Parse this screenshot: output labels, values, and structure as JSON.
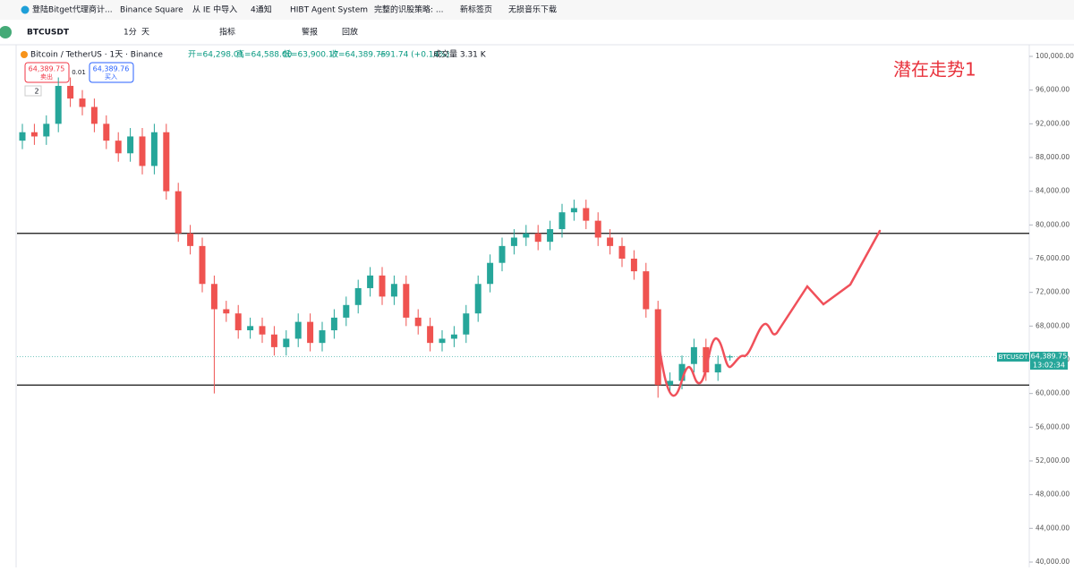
{
  "ui": {
    "bookmarks": [
      "登陆Bitget代理商计...",
      "Binance Square",
      "从 IE 中导入",
      "4通知",
      "HIBT Agent System",
      "完整的识股策略: ...",
      "新标签页",
      "无损音乐下载"
    ],
    "toolbar": {
      "symbol": "BTCUSDT",
      "interval1": "1分",
      "interval2": "天",
      "indicators": "指标",
      "alert": "警报",
      "replay": "回放"
    },
    "legend": {
      "title": "Bitcoin / TetherUS · 1天 · Binance",
      "open": "开=64,298.01",
      "high": "高=64,588.00",
      "low": "低=63,900.17",
      "close": "收=64,389.75",
      "change": "+91.74 (+0.14%)",
      "volume": "成交量 3.31 K"
    },
    "trade": {
      "sell_price": "64,389.75",
      "sell": "卖出",
      "spread": "0.01",
      "buy_price": "64,389.76",
      "buy": "买入",
      "layers": "2"
    },
    "annotation": "潜在走势1",
    "price_tag": {
      "symbol": "BTCUSDT",
      "price": "64,389.75",
      "countdown": "13:02:34"
    }
  },
  "chart_data": {
    "type": "candlestick",
    "up_color": "#26a69a",
    "down_color": "#ef5350",
    "ylim": [
      40000,
      100000
    ],
    "yticks": [
      {
        "value": 40000,
        "label": "40,000.00"
      },
      {
        "value": 44000,
        "label": "44,000.00"
      },
      {
        "value": 48000,
        "label": "48,000.00"
      },
      {
        "value": 52000,
        "label": "52,000.00"
      },
      {
        "value": 56000,
        "label": "56,000.00"
      },
      {
        "value": 60000,
        "label": "60,000.00"
      },
      {
        "value": 64000,
        "label": "64,000.00"
      },
      {
        "value": 68000,
        "label": "68,000.00"
      },
      {
        "value": 72000,
        "label": "72,000.00"
      },
      {
        "value": 76000,
        "label": "76,000.00"
      },
      {
        "value": 80000,
        "label": "80,000.00"
      },
      {
        "value": 84000,
        "label": "84,000.00"
      },
      {
        "value": 88000,
        "label": "88,000.00"
      },
      {
        "value": 92000,
        "label": "92,000.00"
      },
      {
        "value": 96000,
        "label": "96,000.00"
      },
      {
        "value": 100000,
        "label": "100,000.00"
      }
    ],
    "hlines": [
      79000,
      61000
    ],
    "open": [
      90000,
      91000,
      90500,
      92000,
      96500,
      95000,
      94000,
      92000,
      90000,
      88500,
      90500,
      87000,
      91000,
      84000,
      79000,
      77500,
      73000,
      70000,
      69500,
      67500,
      68000,
      67000,
      65500,
      66500,
      68500,
      66000,
      67500,
      69000,
      70500,
      72500,
      74000,
      71500,
      73000,
      69000,
      68000,
      66000,
      66500,
      67000,
      69500,
      73000,
      75500,
      77500,
      78500,
      79000,
      78000,
      79500,
      81500,
      82000,
      80500,
      78500,
      77500,
      76000,
      74500,
      70000,
      61000,
      61500,
      63500,
      65500,
      62500,
      64298.01
    ],
    "close": [
      91000,
      90500,
      92000,
      96500,
      95000,
      94000,
      92000,
      90000,
      88500,
      90500,
      87000,
      91000,
      84000,
      79000,
      77500,
      73000,
      70000,
      69500,
      67500,
      68000,
      67000,
      65500,
      66500,
      68500,
      66000,
      67500,
      69000,
      70500,
      72500,
      74000,
      71500,
      73000,
      69000,
      68000,
      66000,
      66500,
      67000,
      69500,
      73000,
      75500,
      77500,
      78500,
      79000,
      78000,
      79500,
      81500,
      82000,
      80500,
      78500,
      77500,
      76000,
      74500,
      70000,
      61000,
      61500,
      63500,
      65500,
      62500,
      63500,
      64389.75
    ],
    "high": [
      92000,
      92000,
      93000,
      97500,
      97500,
      96000,
      95000,
      93000,
      91000,
      91500,
      91500,
      92000,
      92000,
      85000,
      80000,
      78500,
      74000,
      71000,
      70500,
      69000,
      69000,
      68000,
      67500,
      69500,
      69500,
      68500,
      70000,
      71500,
      73500,
      75000,
      75000,
      74000,
      74000,
      70000,
      69000,
      67500,
      68000,
      70500,
      74000,
      76500,
      78500,
      79500,
      80000,
      80000,
      80500,
      82500,
      83000,
      83000,
      81500,
      79500,
      78500,
      77000,
      75500,
      71000,
      62500,
      64500,
      66500,
      66500,
      64500,
      64588
    ],
    "low": [
      89000,
      89500,
      89500,
      91000,
      94000,
      93000,
      91000,
      89000,
      87500,
      87500,
      86000,
      86000,
      83000,
      78000,
      76500,
      72000,
      60000,
      68500,
      66500,
      66500,
      66000,
      64500,
      64500,
      65500,
      65000,
      65000,
      66500,
      68000,
      69500,
      71500,
      70500,
      70500,
      68000,
      67000,
      65000,
      65000,
      65500,
      66000,
      68500,
      72000,
      74500,
      76500,
      77500,
      77000,
      77000,
      78500,
      80500,
      79500,
      77500,
      76500,
      75000,
      73500,
      69000,
      59500,
      60000,
      60500,
      62500,
      61500,
      61500,
      63900.17
    ]
  }
}
